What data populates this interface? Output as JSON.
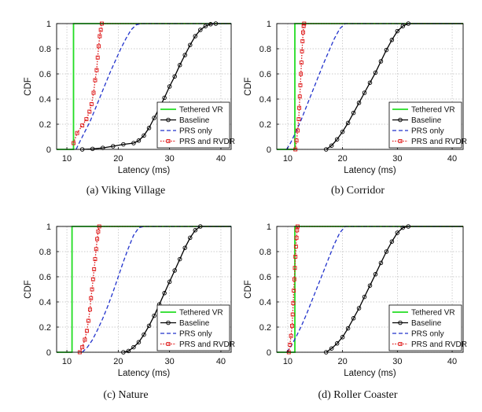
{
  "chart_data": [
    {
      "type": "line",
      "caption": "(a)  Viking Village",
      "xlabel": "Latency (ms)",
      "ylabel": "CDF",
      "xlim": [
        8,
        42
      ],
      "ylim": [
        0,
        1
      ],
      "xticks": [
        10,
        20,
        30,
        40
      ],
      "yticks": [
        0,
        0.2,
        0.4,
        0.6,
        0.8,
        1
      ],
      "grid": true,
      "legend": "bottom-right",
      "series": [
        {
          "name": "Tethered VR",
          "color": "#22dd22",
          "style": "solid",
          "marker": "none",
          "x": [
            8,
            11.3,
            11.3,
            42
          ],
          "y": [
            0,
            0,
            1,
            1
          ]
        },
        {
          "name": "Baseline",
          "color": "#000000",
          "style": "solid",
          "marker": "circle",
          "x": [
            13,
            15,
            17,
            19,
            21,
            23,
            24,
            25,
            26,
            27,
            28,
            29,
            30,
            31,
            32,
            33,
            34,
            35,
            36,
            37,
            38,
            39,
            42
          ],
          "y": [
            0,
            0.004,
            0.012,
            0.025,
            0.04,
            0.05,
            0.07,
            0.11,
            0.17,
            0.25,
            0.33,
            0.41,
            0.5,
            0.58,
            0.67,
            0.75,
            0.83,
            0.9,
            0.95,
            0.98,
            0.995,
            1,
            1
          ]
        },
        {
          "name": "PRS only",
          "color": "#2233cc",
          "style": "dashed",
          "marker": "none",
          "x": [
            11.8,
            12.5,
            13.5,
            14.5,
            15.5,
            16.5,
            17.5,
            18.5,
            19.5,
            20.5,
            21.5,
            22.5,
            23.5,
            24.5,
            42
          ],
          "y": [
            0,
            0.06,
            0.14,
            0.22,
            0.32,
            0.42,
            0.52,
            0.62,
            0.71,
            0.8,
            0.88,
            0.95,
            0.99,
            1,
            1
          ]
        },
        {
          "name": "PRS and RVDR",
          "color": "#dd1111",
          "style": "dotted",
          "marker": "square",
          "x": [
            11.3,
            12,
            13,
            13.8,
            14.4,
            14.8,
            15.2,
            15.5,
            15.8,
            16,
            16.2,
            16.4,
            16.6,
            16.8,
            42
          ],
          "y": [
            0.05,
            0.13,
            0.19,
            0.24,
            0.3,
            0.36,
            0.45,
            0.55,
            0.63,
            0.73,
            0.82,
            0.9,
            0.95,
            1,
            1
          ]
        }
      ]
    },
    {
      "type": "line",
      "caption": "(b)  Corridor",
      "xlabel": "Latency (ms)",
      "ylabel": "CDF",
      "xlim": [
        8,
        42
      ],
      "ylim": [
        0,
        1
      ],
      "xticks": [
        10,
        20,
        30,
        40
      ],
      "yticks": [
        0,
        0.2,
        0.4,
        0.6,
        0.8,
        1
      ],
      "grid": true,
      "legend": "bottom-right",
      "series": [
        {
          "name": "Tethered VR",
          "color": "#22dd22",
          "style": "solid",
          "marker": "none",
          "x": [
            8,
            11.3,
            11.3,
            42
          ],
          "y": [
            0,
            0,
            1,
            1
          ]
        },
        {
          "name": "Baseline",
          "color": "#000000",
          "style": "solid",
          "marker": "circle",
          "x": [
            17,
            18,
            19,
            20,
            21,
            22,
            23,
            24,
            25,
            26,
            27,
            28,
            29,
            30,
            31,
            32,
            42
          ],
          "y": [
            0,
            0.03,
            0.08,
            0.14,
            0.21,
            0.29,
            0.37,
            0.45,
            0.53,
            0.61,
            0.7,
            0.79,
            0.87,
            0.94,
            0.98,
            1,
            1
          ]
        },
        {
          "name": "PRS only",
          "color": "#2233cc",
          "style": "dashed",
          "marker": "none",
          "x": [
            9.8,
            10.5,
            11.5,
            12.5,
            13.5,
            14.5,
            15.5,
            16.5,
            17.5,
            18.5,
            19.5,
            20.5,
            42
          ],
          "y": [
            0,
            0.05,
            0.14,
            0.24,
            0.35,
            0.46,
            0.57,
            0.68,
            0.78,
            0.88,
            0.96,
            1,
            1
          ]
        },
        {
          "name": "PRS and RVDR",
          "color": "#dd1111",
          "style": "dotted",
          "marker": "square",
          "x": [
            11.4,
            11.6,
            11.8,
            12,
            12.1,
            12.2,
            12.3,
            12.4,
            12.5,
            12.6,
            12.7,
            12.8,
            12.9,
            13,
            42
          ],
          "y": [
            0,
            0.07,
            0.15,
            0.24,
            0.33,
            0.42,
            0.51,
            0.6,
            0.69,
            0.78,
            0.86,
            0.93,
            0.98,
            1,
            1
          ]
        }
      ]
    },
    {
      "type": "line",
      "caption": "(c)  Nature",
      "xlabel": "Latency (ms)",
      "ylabel": "CDF",
      "xlim": [
        8,
        42
      ],
      "ylim": [
        0,
        1
      ],
      "xticks": [
        10,
        20,
        30,
        40
      ],
      "yticks": [
        0,
        0.2,
        0.4,
        0.6,
        0.8,
        1
      ],
      "grid": true,
      "legend": "bottom-right",
      "series": [
        {
          "name": "Tethered VR",
          "color": "#22dd22",
          "style": "solid",
          "marker": "none",
          "x": [
            8,
            11,
            11,
            42
          ],
          "y": [
            0,
            0,
            1,
            1
          ]
        },
        {
          "name": "Baseline",
          "color": "#000000",
          "style": "solid",
          "marker": "circle",
          "x": [
            21,
            22,
            23,
            24,
            25,
            26,
            27,
            28,
            29,
            30,
            31,
            32,
            33,
            34,
            35,
            36,
            42
          ],
          "y": [
            0,
            0.01,
            0.04,
            0.08,
            0.14,
            0.21,
            0.29,
            0.38,
            0.47,
            0.56,
            0.65,
            0.74,
            0.83,
            0.91,
            0.97,
            1,
            1
          ]
        },
        {
          "name": "PRS only",
          "color": "#2233cc",
          "style": "dashed",
          "marker": "none",
          "x": [
            13,
            14,
            15,
            16,
            17,
            18,
            19,
            20,
            21,
            22,
            23,
            24,
            25,
            42
          ],
          "y": [
            0,
            0.04,
            0.1,
            0.18,
            0.27,
            0.37,
            0.48,
            0.6,
            0.72,
            0.83,
            0.93,
            0.99,
            1,
            1
          ]
        },
        {
          "name": "PRS and RVDR",
          "color": "#dd1111",
          "style": "dotted",
          "marker": "square",
          "x": [
            12.5,
            13,
            13.5,
            13.9,
            14.2,
            14.5,
            14.7,
            14.9,
            15.1,
            15.3,
            15.5,
            15.7,
            15.9,
            16.1,
            16.3,
            42
          ],
          "y": [
            0,
            0.04,
            0.1,
            0.17,
            0.25,
            0.34,
            0.43,
            0.5,
            0.58,
            0.66,
            0.74,
            0.82,
            0.9,
            0.96,
            1,
            1
          ]
        }
      ]
    },
    {
      "type": "line",
      "caption": "(d)  Roller Coaster",
      "xlabel": "Latency (ms)",
      "ylabel": "CDF",
      "xlim": [
        8,
        42
      ],
      "ylim": [
        0,
        1
      ],
      "xticks": [
        10,
        20,
        30,
        40
      ],
      "yticks": [
        0,
        0.2,
        0.4,
        0.6,
        0.8,
        1
      ],
      "grid": true,
      "legend": "bottom-right",
      "series": [
        {
          "name": "Tethered VR",
          "color": "#22dd22",
          "style": "solid",
          "marker": "none",
          "x": [
            8,
            11.3,
            11.3,
            42
          ],
          "y": [
            0,
            0,
            1,
            1
          ]
        },
        {
          "name": "Baseline",
          "color": "#000000",
          "style": "solid",
          "marker": "circle",
          "x": [
            17,
            18,
            19,
            20,
            21,
            22,
            23,
            24,
            25,
            26,
            27,
            28,
            29,
            30,
            31,
            32,
            42
          ],
          "y": [
            0,
            0.03,
            0.07,
            0.12,
            0.19,
            0.27,
            0.35,
            0.44,
            0.53,
            0.62,
            0.71,
            0.8,
            0.88,
            0.95,
            0.99,
            1,
            1
          ]
        },
        {
          "name": "PRS only",
          "color": "#2233cc",
          "style": "dashed",
          "marker": "none",
          "x": [
            9.8,
            10.5,
            11.5,
            12.5,
            13.5,
            14.5,
            15.5,
            16.5,
            17.5,
            18.5,
            19.5,
            20.5,
            42
          ],
          "y": [
            0,
            0.04,
            0.12,
            0.21,
            0.31,
            0.42,
            0.53,
            0.64,
            0.75,
            0.86,
            0.95,
            1,
            1
          ]
        },
        {
          "name": "PRS and RVDR",
          "color": "#dd1111",
          "style": "dotted",
          "marker": "square",
          "x": [
            10.2,
            10.4,
            10.6,
            10.8,
            10.9,
            11,
            11.1,
            11.2,
            11.3,
            11.4,
            11.5,
            11.6,
            11.7,
            11.8,
            42
          ],
          "y": [
            0,
            0.06,
            0.13,
            0.21,
            0.3,
            0.39,
            0.49,
            0.58,
            0.67,
            0.76,
            0.84,
            0.91,
            0.97,
            1,
            1
          ]
        }
      ]
    }
  ]
}
